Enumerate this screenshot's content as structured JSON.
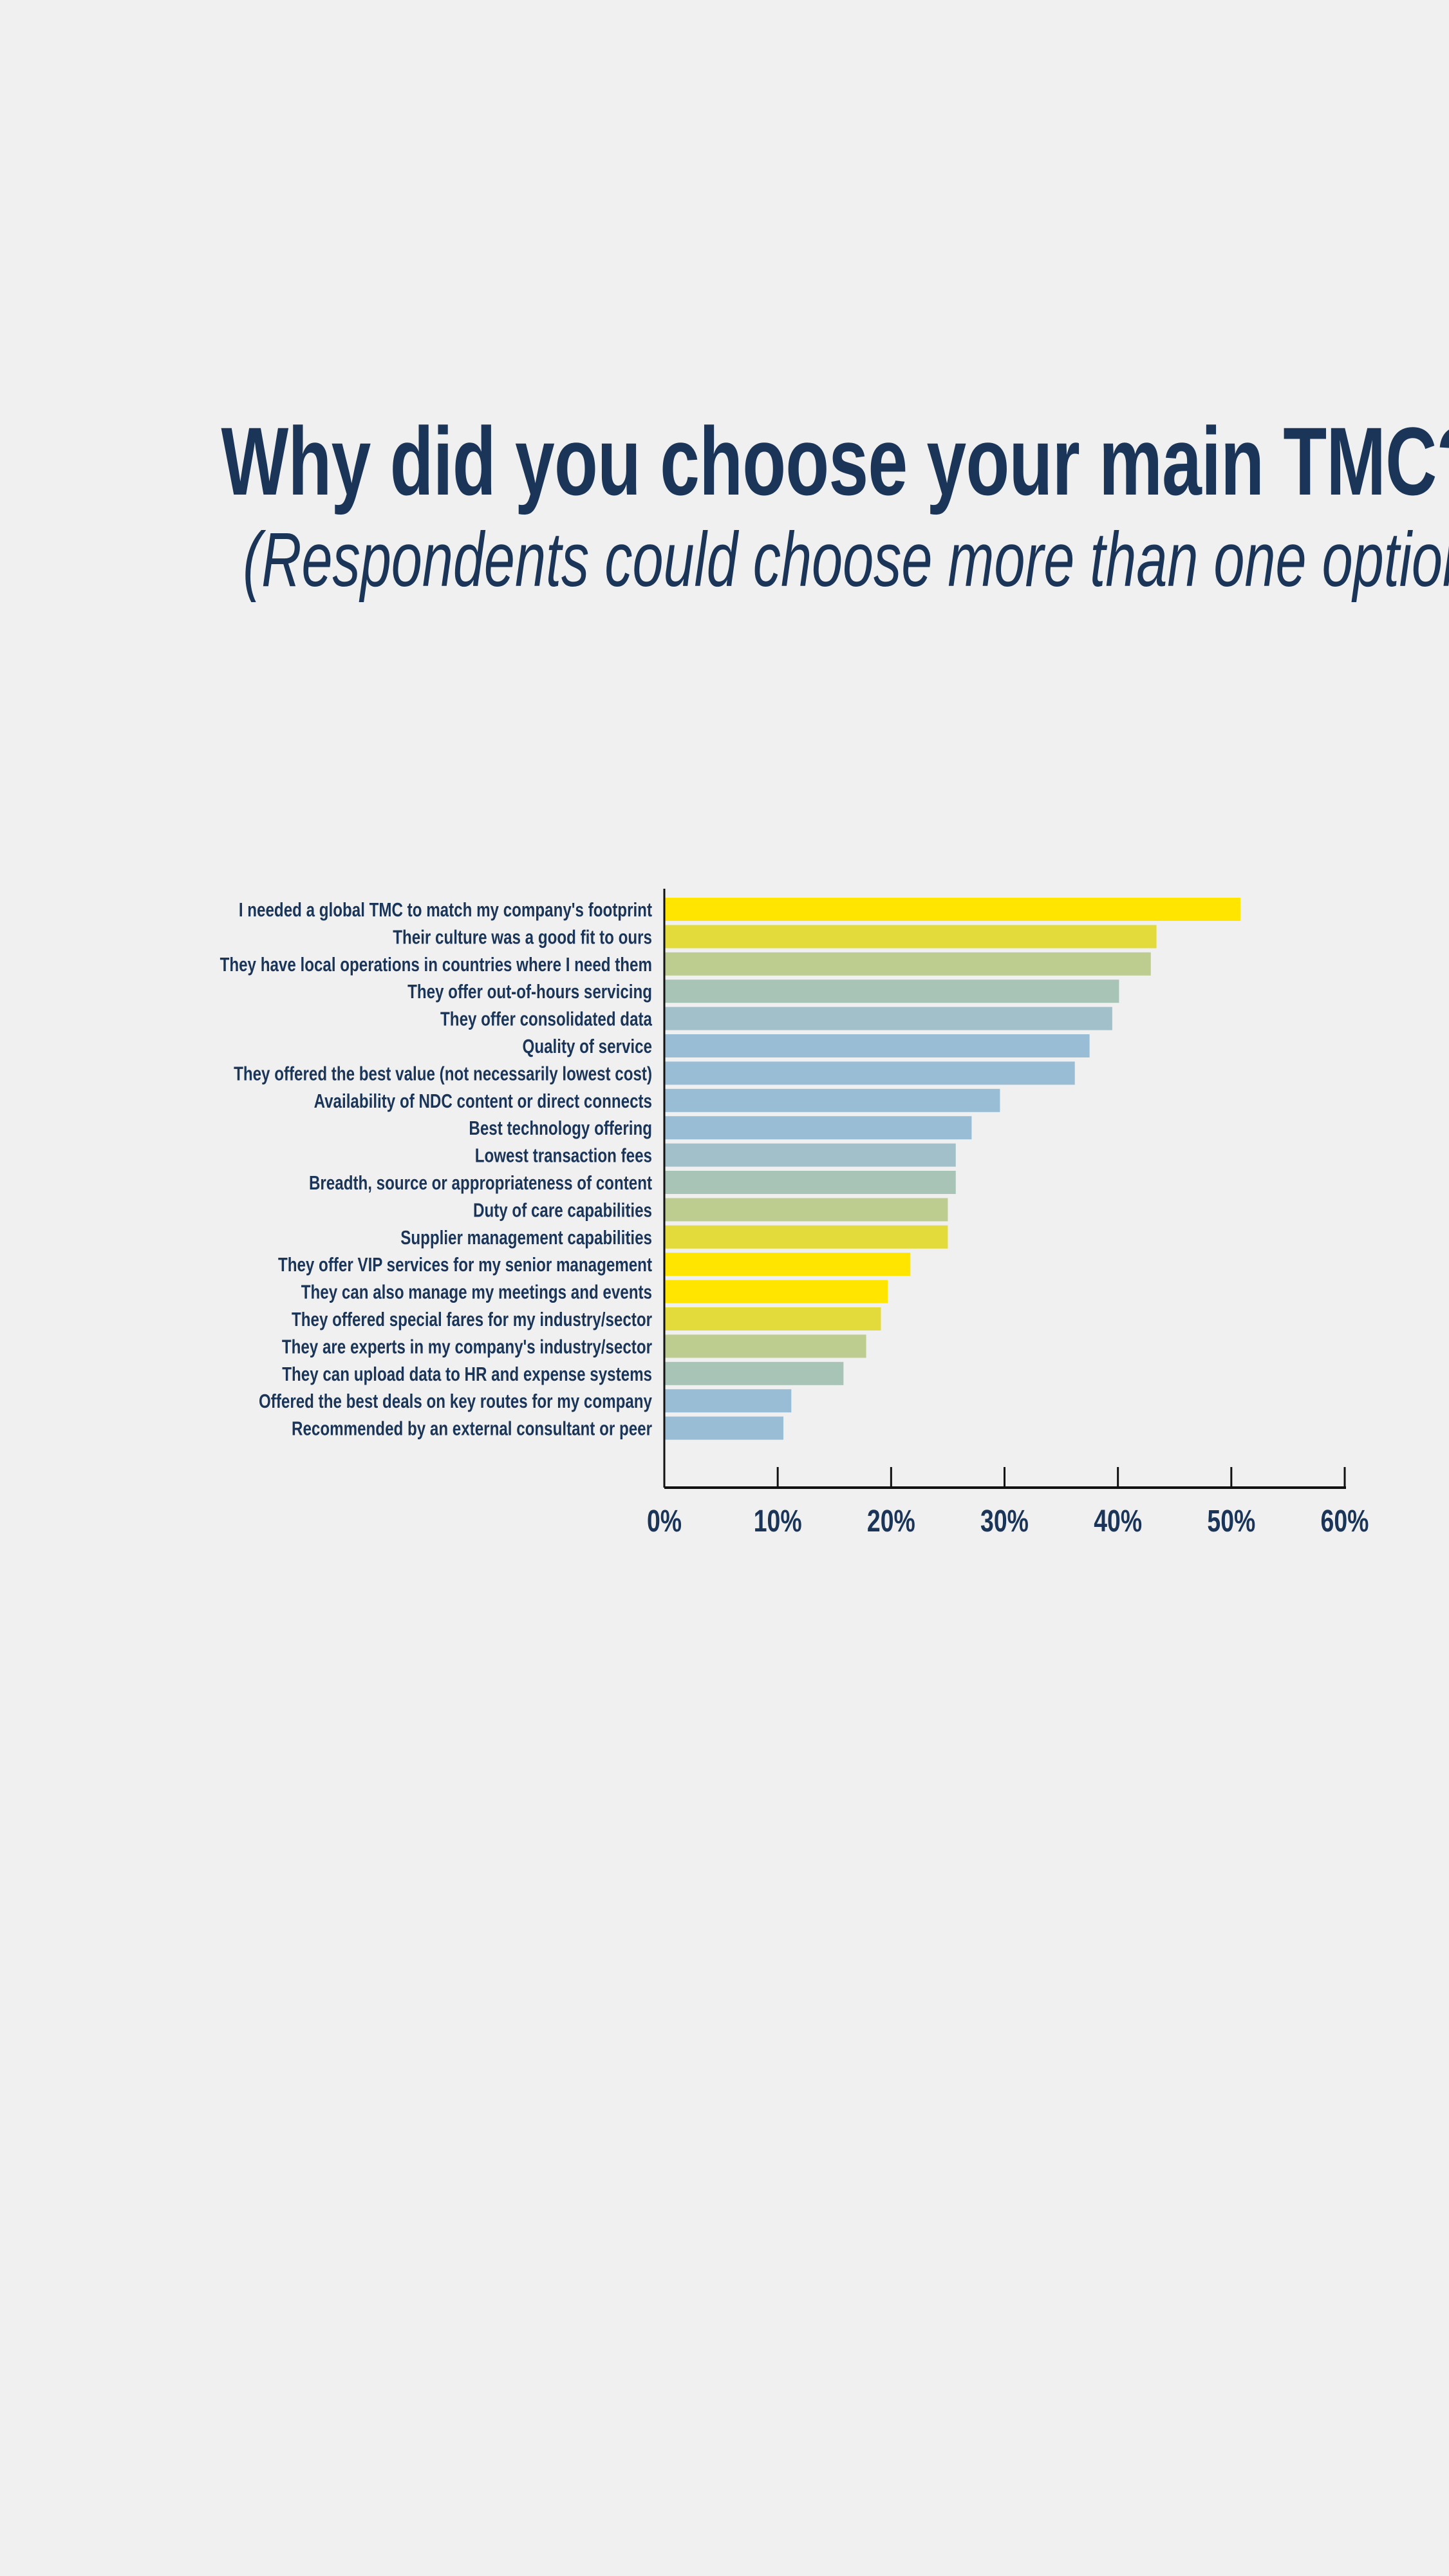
{
  "title": "Why did you choose your main TMC?",
  "subtitle": "(Respondents could choose more than one option)",
  "chart_data": {
    "type": "bar",
    "orientation": "horizontal",
    "title": "Why did you choose your main TMC?",
    "subtitle": "(Respondents could choose more than one option)",
    "xlabel": "",
    "ylabel": "",
    "xlim": [
      0,
      60
    ],
    "x_ticks": [
      "0%",
      "10%",
      "20%",
      "30%",
      "40%",
      "50%",
      "60%"
    ],
    "grid": false,
    "categories": [
      "I needed a global TMC to match my company's footprint",
      "Their culture was a good fit to ours",
      "They have local operations in countries where I need them",
      "They offer out-of-hours servicing",
      "They offer consolidated data",
      "Quality of service",
      "They offered the best value (not necessarily lowest cost)",
      "Availability of NDC content or direct connects",
      "Best technology offering",
      "Lowest transaction fees",
      "Breadth, source or appropriateness of content",
      "Duty of care capabilities",
      "Supplier management capabilities",
      "They offer VIP services for my senior management",
      "They can also manage my meetings and events",
      "They offered special fares for my industry/sector",
      "They are experts in my company's industry/sector",
      "They can upload data to HR and expense systems",
      "Offered the best deals on key routes for my company",
      "Recommended by an external consultant or peer"
    ],
    "values": [
      50.8,
      43.4,
      42.9,
      40.1,
      39.5,
      37.5,
      36.2,
      29.6,
      27.1,
      25.7,
      25.7,
      25.0,
      25.0,
      21.7,
      19.7,
      19.1,
      17.8,
      15.8,
      11.2,
      10.5
    ],
    "bar_colors": [
      "#FFE500",
      "#E3DB3C",
      "#BDCC8F",
      "#A7C4B7",
      "#A1C0C9",
      "#9ABDD6",
      "#9ABDD6",
      "#9ABDD6",
      "#9ABDD6",
      "#A1C0C9",
      "#A7C4B7",
      "#BDCC8F",
      "#E3DB3C",
      "#FFE500",
      "#FFE500",
      "#E3DB3C",
      "#BDCC8F",
      "#A7C4B7",
      "#9ABDD6",
      "#9ABDD6"
    ]
  }
}
